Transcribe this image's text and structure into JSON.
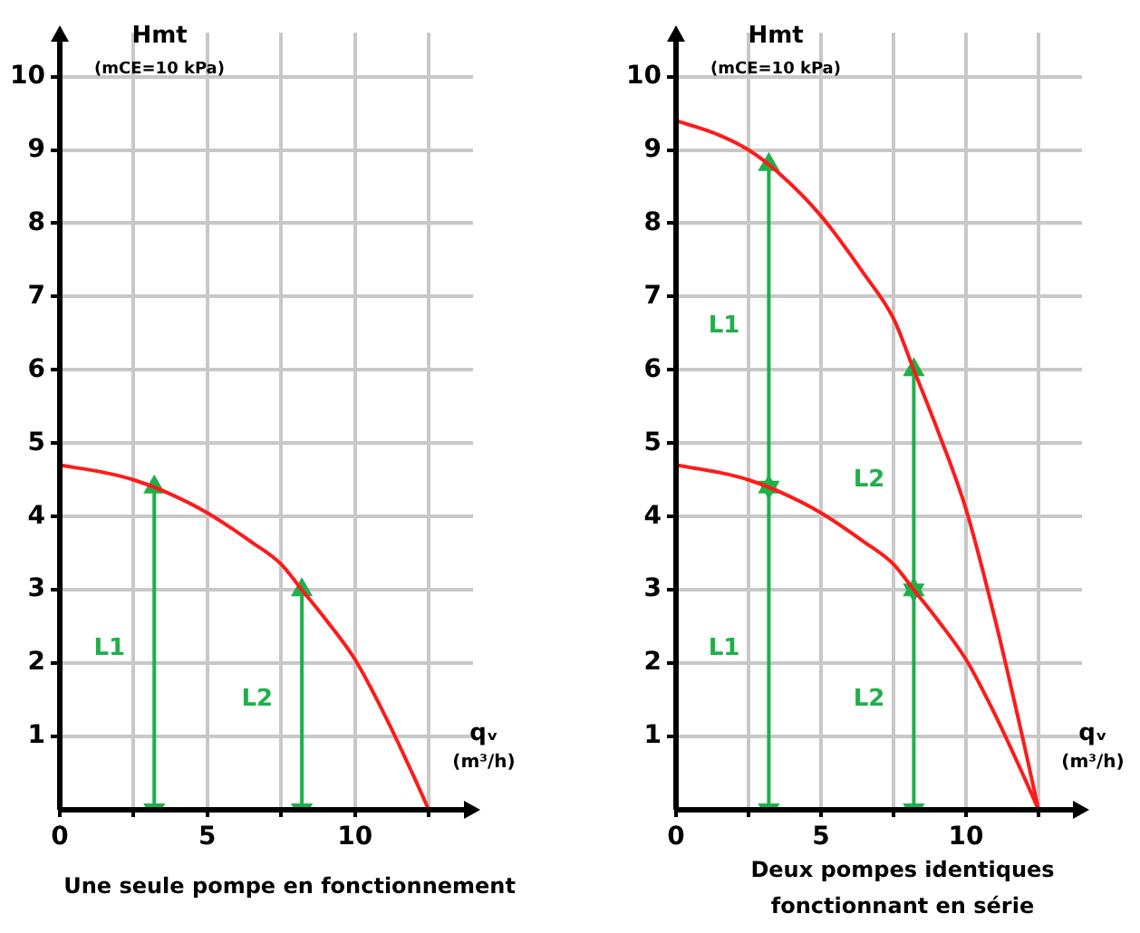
{
  "chart_data": [
    {
      "type": "line",
      "title": "Une seule pompe en fonctionnement",
      "xlabel": "qᵥ\n(m³/h)",
      "ylabel": "Hmt\n(mCE=10 kPa)",
      "xlim": [
        0,
        14
      ],
      "xticks": [
        0,
        {
          "value": 2.5,
          "label": null
        },
        5,
        {
          "value": 7.5,
          "label": null
        },
        10,
        {
          "value": 12.5,
          "label": null
        }
      ],
      "ylim": [
        0,
        10.6
      ],
      "yticks": [
        1,
        2,
        3,
        4,
        5,
        6,
        7,
        8,
        9,
        10
      ],
      "grid": true,
      "legend": false,
      "marker": "none",
      "series": [
        {
          "color": "#ff1a1a",
          "x": [
            0,
            1.5,
            2.5,
            3.5,
            5,
            6.5,
            7.5,
            8.2,
            9,
            10,
            11,
            12,
            12.5
          ],
          "values": [
            4.7,
            4.6,
            4.5,
            4.35,
            4.05,
            3.65,
            3.35,
            3.0,
            2.6,
            2.05,
            1.3,
            0.45,
            0
          ]
        },
        {
          "name": "L1",
          "color": "#1fb04a",
          "marker": "triangle",
          "x": [
            3.2,
            3.2
          ],
          "values": [
            0,
            4.4
          ]
        },
        {
          "name": "L2",
          "color": "#1fb04a",
          "marker": "triangle",
          "x": [
            8.2,
            8.2
          ],
          "values": [
            0,
            3.0
          ]
        }
      ]
    },
    {
      "type": "line",
      "title": "Deux pompes identiques fonctionnant en série",
      "xlabel": "qᵥ\n(m³/h)",
      "ylabel": "Hmt\n(mCE=10 kPa)",
      "xlim": [
        0,
        14
      ],
      "xticks": [
        0,
        {
          "value": 2.5,
          "label": null
        },
        5,
        {
          "value": 7.5,
          "label": null
        },
        10,
        {
          "value": 12.5,
          "label": null
        }
      ],
      "ylim": [
        0,
        10.6
      ],
      "yticks": [
        1,
        2,
        3,
        4,
        5,
        6,
        7,
        8,
        9,
        10
      ],
      "grid": true,
      "legend": false,
      "marker": "none",
      "series": [
        {
          "color": "#ff1a1a",
          "x": [
            0,
            1.5,
            2.5,
            3.5,
            5,
            6.5,
            7.5,
            8.2,
            9,
            10,
            11,
            12,
            12.5
          ],
          "values": [
            4.7,
            4.6,
            4.5,
            4.35,
            4.05,
            3.65,
            3.35,
            3.0,
            2.6,
            2.05,
            1.3,
            0.45,
            0
          ]
        },
        {
          "color": "#ff1a1a",
          "x": [
            0,
            1.5,
            2.5,
            3.5,
            5,
            6.5,
            7.5,
            8.2,
            9,
            10,
            11,
            12,
            12.5
          ],
          "values": [
            9.4,
            9.2,
            9.0,
            8.7,
            8.1,
            7.3,
            6.7,
            6.0,
            5.2,
            4.1,
            2.6,
            0.9,
            0
          ]
        },
        {
          "name": "L1",
          "color": "#1fb04a",
          "marker": "triangle",
          "x": [
            3.2,
            3.2
          ],
          "values": [
            0,
            4.4
          ]
        },
        {
          "name": "L1",
          "color": "#1fb04a",
          "marker": "triangle",
          "x": [
            3.2,
            3.2
          ],
          "values": [
            4.4,
            8.8
          ]
        },
        {
          "name": "L2",
          "color": "#1fb04a",
          "marker": "triangle",
          "x": [
            8.2,
            8.2
          ],
          "values": [
            0,
            3.0
          ]
        },
        {
          "name": "L2",
          "color": "#1fb04a",
          "marker": "triangle",
          "x": [
            8.2,
            8.2
          ],
          "values": [
            3.0,
            6.0
          ]
        }
      ]
    }
  ]
}
